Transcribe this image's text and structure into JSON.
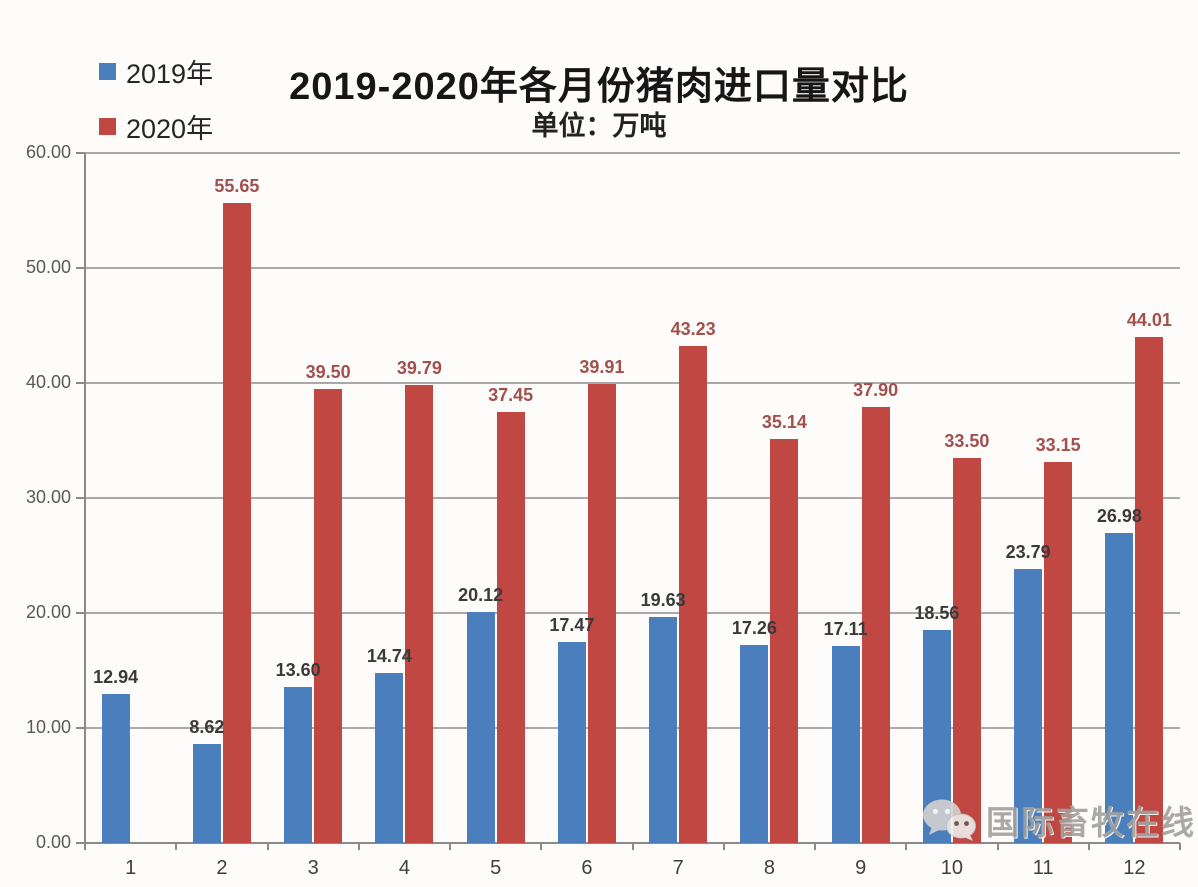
{
  "chart_data": {
    "type": "bar",
    "title": "2019-2020年各月份猪肉进口量对比",
    "subtitle": "单位：万吨",
    "categories": [
      "1",
      "2",
      "3",
      "4",
      "5",
      "6",
      "7",
      "8",
      "9",
      "10",
      "11",
      "12"
    ],
    "series": [
      {
        "name": "2019年",
        "color": "#4a7ebc",
        "label_color": "#3a3a3a",
        "values": [
          12.94,
          8.62,
          13.6,
          14.74,
          20.12,
          17.47,
          19.63,
          17.26,
          17.11,
          18.56,
          23.79,
          26.98
        ]
      },
      {
        "name": "2020年",
        "color": "#c14743",
        "label_color": "#a2504d",
        "values": [
          null,
          55.65,
          39.5,
          39.79,
          37.45,
          39.91,
          43.23,
          35.14,
          37.9,
          33.5,
          33.15,
          44.01
        ]
      }
    ],
    "ylim": [
      0,
      60
    ],
    "ytick_step": 10,
    "ytick_labels": [
      "0.00",
      "10.00",
      "20.00",
      "30.00",
      "40.00",
      "50.00",
      "60.00"
    ],
    "grid": true,
    "legend_position": "top-left",
    "value_label_decimals": 2
  },
  "watermark": {
    "icon": "wechat-icon",
    "text": "国际畜牧在线"
  }
}
